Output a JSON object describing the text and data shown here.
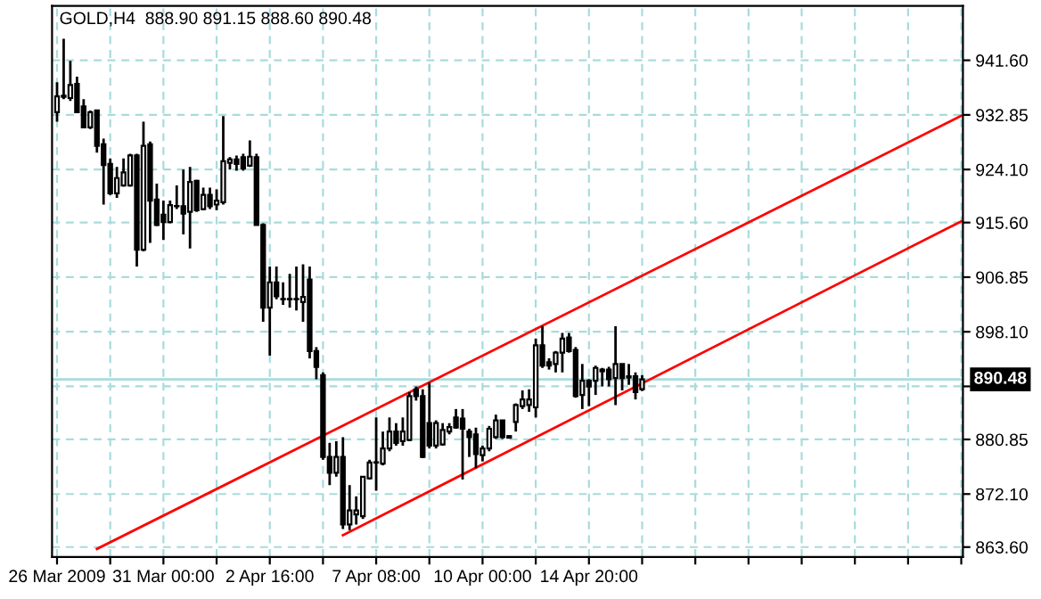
{
  "chart_data": {
    "type": "candlestick",
    "title": "GOLD,H4  888.90 891.15 888.60 890.48",
    "categories": [
      "26 Mar 2009",
      null,
      null,
      null,
      null,
      null,
      null,
      null,
      null,
      null,
      null,
      null,
      null,
      null,
      null,
      null,
      "31 Mar 00:00",
      null,
      null,
      null,
      null,
      null,
      null,
      null,
      null,
      null,
      null,
      null,
      null,
      null,
      null,
      null,
      "2 Apr 16:00",
      null,
      null,
      null,
      null,
      null,
      null,
      null,
      null,
      null,
      null,
      null,
      null,
      null,
      null,
      null,
      "7 Apr 08:00",
      null,
      null,
      null,
      null,
      null,
      null,
      null,
      null,
      null,
      null,
      null,
      null,
      null,
      null,
      null,
      "10 Apr 00:00",
      null,
      null,
      null,
      null,
      null,
      null,
      null,
      null,
      null,
      null,
      null,
      null,
      null,
      null,
      null,
      "14 Apr 20:00",
      null,
      null,
      null,
      null,
      null,
      null,
      null,
      null,
      null,
      null,
      null,
      null,
      null,
      null,
      null,
      null,
      null,
      null,
      null,
      null,
      null,
      null,
      null,
      null,
      null,
      null,
      null,
      null,
      null,
      null,
      null,
      null,
      null,
      null,
      null,
      null,
      null,
      null,
      null,
      null,
      null,
      null,
      null,
      null,
      null,
      null,
      null,
      null,
      null,
      null,
      null,
      null,
      null,
      null,
      null,
      null
    ],
    "ohlc": [
      [
        933.29,
        938.08,
        931.76,
        935.82
      ],
      [
        935.73,
        945.03,
        935.37,
        935.91
      ],
      [
        935.55,
        941.51,
        935.1,
        937.63
      ],
      [
        937.81,
        938.98,
        933.11,
        933.29
      ],
      [
        934.2,
        935.37,
        930.86,
        930.86
      ],
      [
        930.86,
        933.56,
        930.58,
        933.29
      ],
      [
        933.56,
        933.56,
        926.79,
        927.88
      ],
      [
        928.15,
        929.05,
        918.48,
        924.81
      ],
      [
        924.99,
        925.89,
        920.02,
        920.29
      ],
      [
        920.29,
        924.53,
        919.57,
        922.73
      ],
      [
        921.55,
        925.89,
        921.37,
        923.63
      ],
      [
        921.55,
        926.61,
        921.37,
        926.34
      ],
      [
        926.34,
        926.61,
        908.55,
        911.26
      ],
      [
        911.26,
        931.76,
        910.99,
        927.88
      ],
      [
        928.15,
        928.6,
        912.34,
        919.12
      ],
      [
        919.3,
        921.83,
        915.05,
        915.23
      ],
      [
        916.86,
        919.12,
        912.8,
        915.69
      ],
      [
        915.69,
        919.12,
        915.5,
        918.39
      ],
      [
        918.21,
        921.55,
        917.76,
        918.21
      ],
      [
        918.21,
        924.08,
        913.7,
        917.04
      ],
      [
        917.31,
        924.53,
        911.44,
        922.1
      ],
      [
        922.28,
        922.46,
        917.31,
        917.58
      ],
      [
        917.76,
        921.19,
        917.58,
        920.02
      ],
      [
        920.02,
        921.19,
        917.76,
        918.21
      ],
      [
        918.48,
        920.92,
        917.58,
        919.12
      ],
      [
        918.85,
        932.66,
        918.48,
        925.44
      ],
      [
        925.17,
        926.07,
        924.08,
        925.71
      ],
      [
        925.71,
        926.34,
        923.9,
        924.99
      ],
      [
        926.07,
        926.61,
        923.9,
        924.26
      ],
      [
        924.72,
        928.78,
        924.53,
        926.16
      ],
      [
        926.07,
        926.61,
        915.23,
        915.23
      ],
      [
        915.23,
        915.5,
        899.7,
        901.96
      ],
      [
        901.96,
        908.55,
        894.28,
        906.02
      ],
      [
        906.02,
        908.55,
        903.31,
        903.77
      ],
      [
        903.31,
        906.02,
        902.41,
        903.31
      ],
      [
        903.31,
        907.38,
        901.96,
        903.31
      ],
      [
        903.31,
        908.55,
        901.51,
        903.31
      ],
      [
        902.86,
        908.91,
        899.7,
        903.68
      ],
      [
        906.47,
        908.55,
        893.83,
        895.01
      ],
      [
        895.01,
        895.64,
        890.49,
        892.48
      ],
      [
        891.14,
        891.59,
        877.59,
        878.04
      ],
      [
        878.04,
        880.3,
        873.53,
        875.52
      ],
      [
        875.52,
        880.57,
        874.88,
        878.04
      ],
      [
        878.04,
        881.21,
        866.49,
        867.21
      ],
      [
        867.21,
        873.53,
        866.31,
        869.47
      ],
      [
        868.83,
        871.72,
        867.21,
        869.47
      ],
      [
        868.56,
        874.88,
        868.11,
        874.88
      ],
      [
        874.61,
        877.59,
        874.43,
        877.14
      ],
      [
        877.14,
        884.37,
        872.63,
        877.14
      ],
      [
        876.96,
        882.11,
        876.69,
        879.4
      ],
      [
        879.4,
        884.37,
        878.95,
        882.11
      ],
      [
        882.11,
        883.46,
        879.85,
        880.3
      ],
      [
        880.57,
        884.37,
        879.85,
        882.11
      ],
      [
        880.75,
        888.43,
        880.57,
        887.8
      ],
      [
        888.88,
        889.33,
        887.07,
        887.8
      ],
      [
        887.8,
        888.88,
        877.86,
        878.04
      ],
      [
        883.46,
        889.96,
        879.4,
        879.85
      ],
      [
        879.85,
        883.91,
        879.4,
        883.46
      ],
      [
        880.03,
        883.46,
        879.85,
        882.38
      ],
      [
        882.11,
        883.46,
        881.66,
        882.83
      ],
      [
        884.37,
        885.72,
        882.56,
        882.74
      ],
      [
        884.19,
        885.72,
        874.43,
        882.56
      ],
      [
        882.11,
        882.56,
        878.04,
        881.21
      ],
      [
        881.66,
        882.74,
        876.24,
        878.5
      ],
      [
        878.32,
        879.85,
        877.32,
        879.4
      ],
      [
        879.4,
        883.01,
        878.95,
        882.56
      ],
      [
        881.21,
        884.82,
        880.93,
        883.91
      ],
      [
        883.91,
        883.91,
        880.93,
        881.21
      ],
      [
        881.39,
        881.39,
        881.12,
        881.12
      ],
      [
        883.64,
        886.62,
        882.11,
        886.35
      ],
      [
        886.17,
        888.7,
        885.72,
        887.26
      ],
      [
        886.35,
        888.88,
        885.27,
        887.26
      ],
      [
        885.99,
        897.01,
        884.37,
        895.92
      ],
      [
        895.92,
        898.99,
        892.31,
        892.67
      ],
      [
        893.22,
        893.85,
        892.04,
        892.67
      ],
      [
        892.94,
        895.02,
        891.59,
        894.75
      ],
      [
        894.75,
        897.91,
        891.59,
        897.01
      ],
      [
        897.19,
        897.91,
        894.75,
        895.02
      ],
      [
        895.2,
        895.65,
        887.53,
        887.8
      ],
      [
        887.98,
        892.94,
        885.72,
        890.24
      ],
      [
        890.24,
        890.51,
        886.17,
        889.33
      ],
      [
        890.24,
        892.67,
        887.98,
        892.31
      ],
      [
        892.04,
        892.31,
        889.33,
        891.77
      ],
      [
        892.04,
        892.49,
        889.33,
        890.51
      ],
      [
        890.69,
        898.99,
        886.35,
        892.94
      ],
      [
        892.94,
        892.94,
        888.7,
        890.69
      ],
      [
        890.96,
        892.94,
        889.6,
        890.78
      ],
      [
        890.96,
        891.59,
        887.26,
        888.43
      ],
      [
        888.9,
        891.15,
        888.6,
        890.48
      ],
      null,
      null,
      null,
      null,
      null,
      null,
      null,
      null,
      null,
      null,
      null,
      null,
      null,
      null,
      null,
      null,
      null,
      null,
      null,
      null,
      null,
      null,
      null,
      null,
      null,
      null,
      null,
      null,
      null,
      null,
      null,
      null,
      null,
      null,
      null,
      null,
      null,
      null,
      null,
      null,
      null,
      null,
      null,
      null,
      null,
      null,
      null,
      null
    ],
    "series": [
      {
        "type": "line",
        "color": "#ff0000",
        "values": [
          null,
          null,
          null,
          null,
          null,
          null,
          863.3,
          null,
          null,
          null,
          null,
          null,
          null,
          null,
          null,
          null,
          null,
          null,
          null,
          null,
          null,
          null,
          null,
          null,
          null,
          null,
          null,
          null,
          null,
          null,
          null,
          null,
          null,
          null,
          null,
          null,
          null,
          null,
          null,
          null,
          null,
          null,
          null,
          null,
          null,
          null,
          null,
          null,
          null,
          null,
          null,
          null,
          null,
          null,
          null,
          null,
          null,
          null,
          null,
          null,
          null,
          null,
          null,
          null,
          null,
          null,
          null,
          null,
          null,
          null,
          null,
          null,
          null,
          null,
          null,
          null,
          null,
          null,
          null,
          null,
          null,
          null,
          null,
          null,
          null,
          null,
          null,
          null,
          null,
          null,
          null,
          null,
          null,
          null,
          null,
          null,
          null,
          null,
          null,
          null,
          null,
          null,
          null,
          null,
          null,
          null,
          null,
          null,
          null,
          null,
          null,
          null,
          null,
          null,
          null,
          null,
          null,
          null,
          null,
          null,
          null,
          null,
          null,
          null,
          null,
          null,
          null,
          null,
          null,
          null,
          null,
          null,
          null,
          null,
          null,
          null,
          932.7
        ]
      },
      {
        "type": "line",
        "color": "#ff0000",
        "values": [
          null,
          null,
          null,
          null,
          null,
          null,
          null,
          null,
          null,
          null,
          null,
          null,
          null,
          null,
          null,
          null,
          null,
          null,
          null,
          null,
          null,
          null,
          null,
          null,
          null,
          null,
          null,
          null,
          null,
          null,
          null,
          null,
          null,
          null,
          null,
          null,
          null,
          null,
          null,
          null,
          null,
          null,
          null,
          865.5,
          null,
          null,
          null,
          null,
          null,
          null,
          null,
          null,
          null,
          null,
          null,
          null,
          null,
          null,
          null,
          null,
          null,
          null,
          null,
          null,
          null,
          null,
          null,
          null,
          null,
          null,
          null,
          null,
          null,
          null,
          null,
          null,
          null,
          null,
          null,
          null,
          null,
          null,
          null,
          null,
          null,
          null,
          null,
          null,
          null,
          null,
          null,
          null,
          null,
          null,
          null,
          null,
          null,
          null,
          null,
          null,
          null,
          null,
          null,
          null,
          null,
          null,
          null,
          null,
          null,
          null,
          null,
          null,
          null,
          null,
          null,
          null,
          null,
          null,
          null,
          null,
          null,
          null,
          null,
          null,
          null,
          null,
          null,
          null,
          null,
          null,
          null,
          null,
          null,
          null,
          null,
          null,
          915.8
        ]
      }
    ],
    "ylim": [
      862.0,
      950.3
    ],
    "yticks": [
      {
        "value": 863.6,
        "label": "863.60"
      },
      {
        "value": 872.1,
        "label": "872.10"
      },
      {
        "value": 880.85,
        "label": "880.85"
      },
      {
        "value": 889.35,
        "label": null
      },
      {
        "value": 898.1,
        "label": "898.10"
      },
      {
        "value": 906.85,
        "label": "906.85"
      },
      {
        "value": 915.6,
        "label": "915.60"
      },
      {
        "value": 924.1,
        "label": "924.10"
      },
      {
        "value": 932.85,
        "label": "932.85"
      },
      {
        "value": 941.6,
        "label": "941.60"
      }
    ],
    "ref_lines": [
      {
        "axis": "y",
        "value": 890.48,
        "label": "890.48",
        "color": "#a8dcdc"
      }
    ],
    "grid": true
  }
}
